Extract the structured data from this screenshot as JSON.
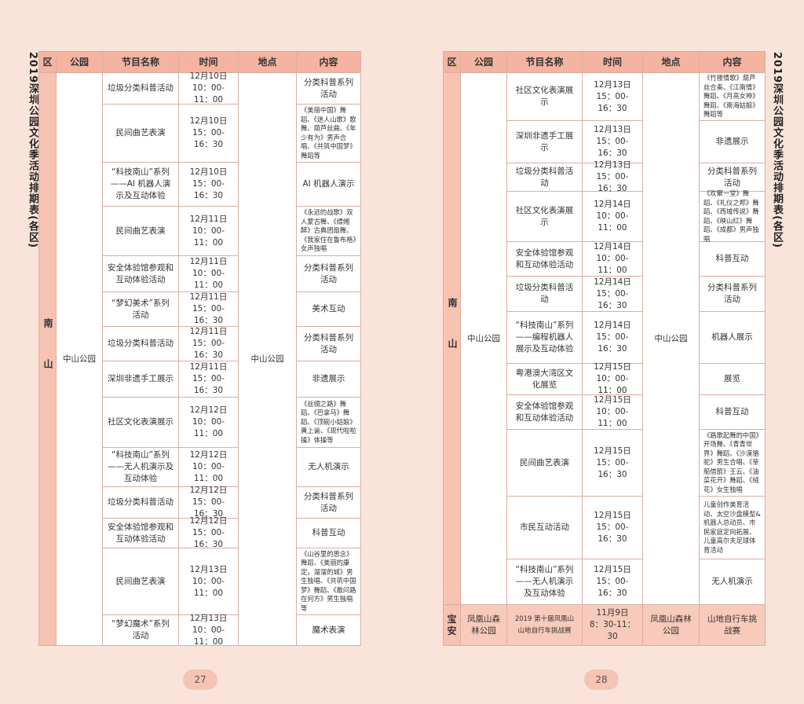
{
  "pages": [
    {
      "side_title": "2019深圳公园文化季活动排期表(各区)",
      "page_number": "27",
      "table": {
        "headers": [
          "区",
          "公园",
          "节目名称",
          "时间",
          "地点",
          "内容"
        ],
        "groups": [
          {
            "district": "南山",
            "park": "中山公园",
            "location": "中山公园",
            "rows": [
              {
                "program": "垃圾分类科普活动",
                "date": "12月10日",
                "time": "10：00-11：00",
                "content": "分类科普系列活动"
              },
              {
                "program": "民间曲艺表演",
                "date": "12月10日",
                "time": "15：00-16：30",
                "content": "《美丽中国》舞蹈、《迷人山歌》歌舞、葫芦丝曲、《年少有为》男声合唱、《共筑中国梦》舞蹈等"
              },
              {
                "program": "“科技南山”系列——AI 机器人演示及互动体验",
                "date": "12月10日",
                "time": "15：00-16：30",
                "content": "AI 机器人演示"
              },
              {
                "program": "民间曲艺表演",
                "date": "12月11日",
                "time": "10：00-11：00",
                "content": "《永远的战歌》双人蒙古舞、《缥缃醉》古典团扇舞、《我家住在鲁布格》女声独唱"
              },
              {
                "program": "安全体验馆参观和互动体验活动",
                "date": "12月11日",
                "time": "10：00-11：00",
                "content": "分类科普系列活动"
              },
              {
                "program": "“梦幻美术”系列活动",
                "date": "12月11日",
                "time": "15：00-16：30",
                "content": "美术互动"
              },
              {
                "program": "垃圾分类科普活动",
                "date": "12月11日",
                "time": "15：00-16：30",
                "content": "分类科普系列活动"
              },
              {
                "program": "深圳非遗手工展示",
                "date": "12月11日",
                "time": "15：00-16：30",
                "content": "非遗展示"
              },
              {
                "program": "社区文化表演展示",
                "date": "12月12日",
                "time": "10：00-11：00",
                "content": "《丝绸之路》舞蹈、《巴拿马》舞蹈、《顶碗小姑娘》黄上谕、《现代啦啦操》体操等"
              },
              {
                "program": "“科技南山”系列——无人机演示及互动体验",
                "date": "12月12日",
                "time": "10：00-11：00",
                "content": "无人机演示"
              },
              {
                "program": "垃圾分类科普活动",
                "date": "12月12日",
                "time": "15：00-16：30",
                "content": "分类科普系列活动"
              },
              {
                "program": "安全体验馆参观和互动体验活动",
                "date": "12月12日",
                "time": "15：00-16：30",
                "content": "科普互动"
              },
              {
                "program": "民间曲艺表演",
                "date": "12月13日",
                "time": "10：00-11：00",
                "content": "《山谷里的思念》舞蹈、《美丽的康定，溜溜的城》男生独唱、《共筑中国梦》舞蹈、《敢问路在何方》男生独唱等"
              },
              {
                "program": "“梦幻魔术”系列活动",
                "date": "12月13日",
                "time": "10：00-11：00",
                "content": "魔术表演"
              }
            ]
          }
        ]
      }
    },
    {
      "side_title": "2019深圳公园文化季活动排期表(各区)",
      "page_number": "28",
      "table": {
        "headers": [
          "区",
          "公园",
          "节目名称",
          "时间",
          "地点",
          "内容"
        ],
        "groups": [
          {
            "district": "南山",
            "park": "中山公园",
            "location": "中山公园",
            "rows": [
              {
                "program": "社区文化表演展示",
                "date": "12月13日",
                "time": "15：00-16：30",
                "content": "《竹楼情歌》葫芦丝合奏、《江南情》舞蹈、《月亮女神》舞蹈、《南海姑娘》舞蹈等"
              },
              {
                "program": "深圳非遗手工展示",
                "date": "12月13日",
                "time": "15：00-16：30",
                "content": "非遗展示"
              },
              {
                "program": "垃圾分类科普活动",
                "date": "12月13日",
                "time": "15：00-16：30",
                "content": "分类科普系列活动"
              },
              {
                "program": "社区文化表演展示",
                "date": "12月14日",
                "time": "10：00-11：00",
                "content": "《欢聚一堂》舞蹈、《礼仪之邦》舞蹈、《西域传说》舞蹈、《映山红》舞蹈、《成都》男声独唱"
              },
              {
                "program": "安全体验馆参观和互动体验活动",
                "date": "12月14日",
                "time": "10：00-11：00",
                "content": "科普互动"
              },
              {
                "program": "垃圾分类科普活动",
                "date": "12月14日",
                "time": "15：00-16：30",
                "content": "分类科普系列活动"
              },
              {
                "program": "“科技南山”系列——编程机器人展示及互动体验",
                "date": "12月14日",
                "time": "15：00-16：30",
                "content": "机器人展示"
              },
              {
                "program": "粤港澳大湾区文化展览",
                "date": "12月15日",
                "time": "10：00-11：00",
                "content": "展览"
              },
              {
                "program": "安全体验馆参观和互动体验活动",
                "date": "12月15日",
                "time": "10：00-11：00",
                "content": "科普互动"
              },
              {
                "program": "民间曲艺表演",
                "date": "12月15日",
                "time": "15：00-16：30",
                "content": "《路歌起舞的中国》开场舞、《青青世界》舞蹈、《沙漠骆驼》男生合唱、《草船借箭》王云、《油菜花开》舞蹈、《绒花》女生独唱"
              },
              {
                "program": "市民互动活动",
                "date": "12月15日",
                "time": "15：00-16：30",
                "content": "儿童创作美育活动、太空沙盘模型&机器人总动员、市民家庭定向拓展、儿童高尔夫足球体育活动"
              },
              {
                "program": "“科技南山”系列——无人机演示及互动体验",
                "date": "12月15日",
                "time": "15：00-16：30",
                "content": "无人机演示"
              }
            ]
          },
          {
            "district": "宝安",
            "park": "凤凰山森林公园",
            "location": "凤凰山森林公园",
            "rows": [
              {
                "program": "2019 第十届凤凰山山地自行车挑战赛",
                "date": "11月9日",
                "time": "8：30-11：30",
                "content": "山地自行车挑战赛"
              }
            ]
          }
        ]
      }
    }
  ]
}
